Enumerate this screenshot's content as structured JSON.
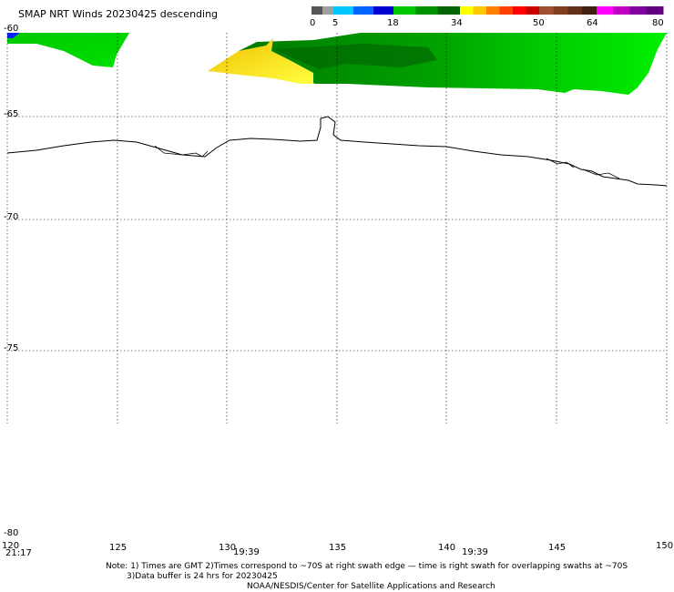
{
  "header": {
    "title": "SMAP NRT Winds  20230425  descending"
  },
  "colorbar": {
    "tick_labels": [
      "0",
      "5",
      "18",
      "34",
      "50",
      "64",
      "80"
    ],
    "segments": [
      {
        "color": "#555555"
      },
      {
        "color": "#a0a0a0"
      },
      {
        "color": "#00c8ff"
      },
      {
        "color": "#0064ff"
      },
      {
        "color": "#0000d0"
      },
      {
        "color": "#00c800"
      },
      {
        "color": "#009000"
      },
      {
        "color": "#006400"
      },
      {
        "color": "#ffff00"
      },
      {
        "color": "#ffc800"
      },
      {
        "color": "#ff8000"
      },
      {
        "color": "#ff4000"
      },
      {
        "color": "#ff0000"
      },
      {
        "color": "#c80000"
      },
      {
        "color": "#a05030"
      },
      {
        "color": "#804020"
      },
      {
        "color": "#603018"
      },
      {
        "color": "#402010"
      },
      {
        "color": "#ff00ff"
      },
      {
        "color": "#c000c0"
      },
      {
        "color": "#8000a0"
      },
      {
        "color": "#600080"
      }
    ]
  },
  "map": {
    "lat_labels": [
      "-60",
      "-65",
      "-70",
      "-75",
      "-80"
    ],
    "lon_labels": [
      "120",
      "125",
      "130",
      "135",
      "140",
      "145",
      "150"
    ],
    "time_labels": [
      "21:17",
      "19:39",
      "19:39"
    ],
    "colors": {
      "wind_green_light": "#00e000",
      "wind_green_mid": "#00b400",
      "wind_green_dark": "#007800",
      "wind_yellow": "#ffe600",
      "wind_gold": "#f0c000",
      "wind_blue": "#0020ff",
      "coastline": "#000000",
      "grid": "#000000"
    }
  },
  "footer": {
    "note_line1": "Note: 1) Times are GMT 2)Times correspond to ~70S at right swath edge — time is right swath for overlapping swaths at ~70S",
    "note_line2": "3)Data buffer is 24 hrs for 20230425",
    "credit": "NOAA/NESDIS/Center for Satellite Applications and Research"
  }
}
